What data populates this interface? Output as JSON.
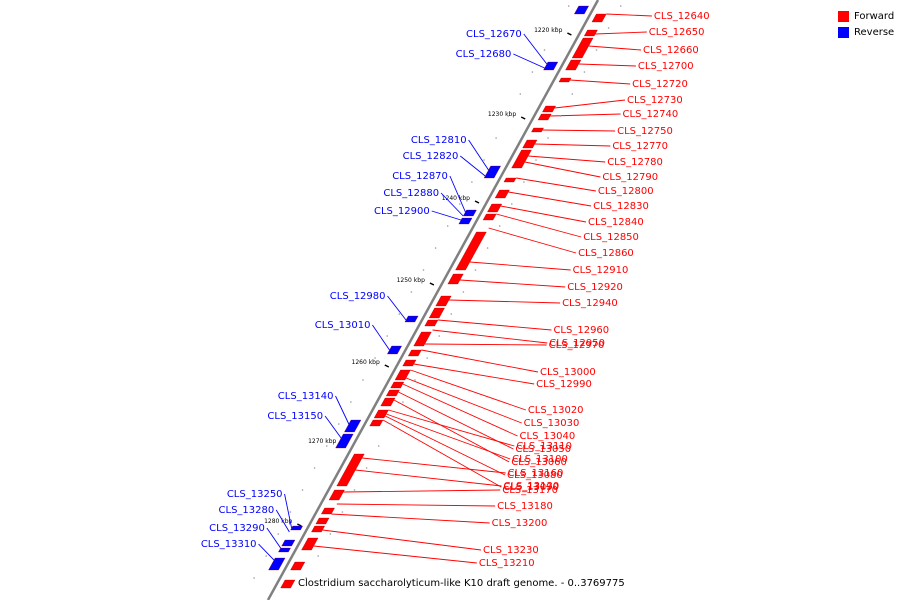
{
  "caption": "Clostridium saccharolyticum-like K10 draft genome. - 0..3769775",
  "legend": [
    {
      "label": "Forward",
      "color": "#ff0000"
    },
    {
      "label": "Reverse",
      "color": "#0000ff"
    }
  ],
  "colors": {
    "forward": "#ff0000",
    "reverse": "#0000ff",
    "axis": "#808080"
  },
  "ticks": [
    "1220 kbp",
    "1230 kbp",
    "1240 kbp",
    "1250 kbp",
    "1260 kbp",
    "1270 kbp",
    "1280 kbp"
  ],
  "forward_genes": [
    "CLS_12640",
    "CLS_12650",
    "CLS_12660",
    "CLS_12700",
    "CLS_12720",
    "CLS_12730",
    "CLS_12740",
    "CLS_12750",
    "CLS_12770",
    "CLS_12780",
    "CLS_12790",
    "CLS_12800",
    "CLS_12830",
    "CLS_12840",
    "CLS_12850",
    "CLS_12860",
    "CLS_12910",
    "CLS_12920",
    "CLS_12940",
    "CLS_12960",
    "CLS_12950",
    "CLS_12970",
    "CLS_13000",
    "CLS_12990",
    "CLS_13020",
    "CLS_13030",
    "CLS_13040",
    "CLS_13050",
    "CLS_13060",
    "CLS_13110",
    "CLS_13100",
    "CLS_13080",
    "CLS_13090",
    "CLS_13160",
    "CLS_13130",
    "CLS_13170",
    "CLS_13180",
    "CLS_13200",
    "CLS_13230",
    "CLS_13210"
  ],
  "reverse_genes": [
    "CLS_12670",
    "CLS_12680",
    "CLS_12810",
    "CLS_12820",
    "CLS_12870",
    "CLS_12880",
    "CLS_12900",
    "CLS_12980",
    "CLS_13010",
    "CLS_13140",
    "CLS_13150",
    "CLS_13250",
    "CLS_13280",
    "CLS_13290",
    "CLS_13310"
  ]
}
